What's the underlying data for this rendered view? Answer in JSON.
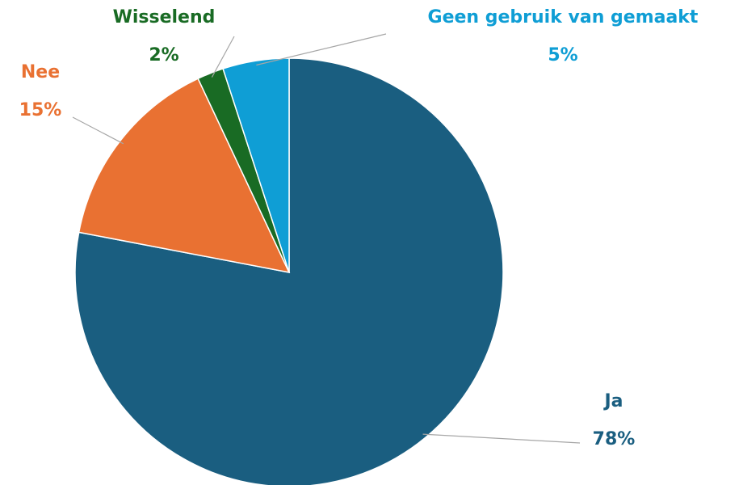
{
  "chart_data": {
    "type": "pie",
    "categories": [
      "Ja",
      "Nee",
      "Wisselend",
      "Geen gebruik van gemaakt"
    ],
    "values": [
      78,
      15,
      2,
      5
    ],
    "value_labels": [
      "78%",
      "15%",
      "2%",
      "5%"
    ],
    "colors": [
      "#1a5e80",
      "#e97132",
      "#196b24",
      "#0f9ed5"
    ]
  }
}
